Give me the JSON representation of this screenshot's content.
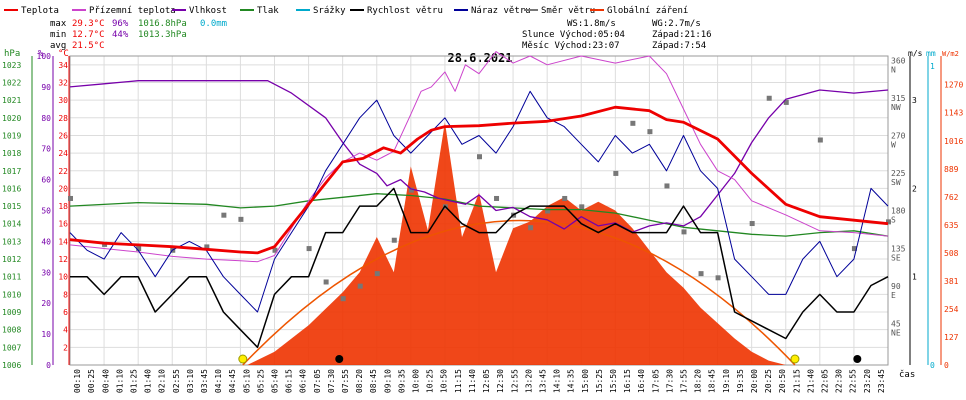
{
  "chart_data": {
    "type": "line",
    "title": "28.6.2021",
    "xlabel": "čas",
    "legend": [
      {
        "name": "Teplota",
        "color": "#ee0000"
      },
      {
        "name": "Přízemní teplota",
        "color": "#cc44cc"
      },
      {
        "name": "Vlhkost",
        "color": "#7700aa"
      },
      {
        "name": "Tlak",
        "color": "#228822"
      },
      {
        "name": "Srážky",
        "color": "#00aacc"
      },
      {
        "name": "Rychlost větru",
        "color": "#000000"
      },
      {
        "name": "Náraz větru",
        "color": "#000099"
      },
      {
        "name": "Směr větru",
        "color": "#777777"
      },
      {
        "name": "Globální záření",
        "color": "#ee3300"
      }
    ],
    "stats": {
      "max_label": "max",
      "max_temp": "29.3°C",
      "max_hum": "96%",
      "max_press": "1016.8hPa",
      "rain": "0.0mm",
      "min_label": "min",
      "min_temp": "12.7°C",
      "min_hum": "44%",
      "min_press": "1013.3hPa",
      "avg_label": "avg",
      "avg_temp": "21.5°C",
      "ws": "WS:1.8m/s",
      "wg": "WG:2.7m/s",
      "sun": "Slunce Východ:05:04",
      "sun_set": "Západ:21:16",
      "moon": "Měsíc Východ:23:07",
      "moon_set": "Západ:7:54"
    },
    "axes": {
      "hpa": {
        "label": "hPa",
        "color": "#228822",
        "ticks": [
          1006,
          1007,
          1008,
          1009,
          1010,
          1011,
          1012,
          1013,
          1014,
          1015,
          1016,
          1017,
          1018,
          1019,
          1020,
          1021,
          1022,
          1023
        ]
      },
      "percent": {
        "label": "%",
        "color": "#7700aa",
        "ticks": [
          0,
          10,
          20,
          30,
          40,
          50,
          60,
          70,
          80,
          90,
          100
        ]
      },
      "celsius": {
        "label": "°C",
        "color": "#ee0000",
        "ticks": [
          2,
          4,
          6,
          8,
          10,
          12,
          14,
          16,
          18,
          20,
          22,
          24,
          26,
          28,
          30,
          32,
          34
        ]
      },
      "ms": {
        "label": "m/s",
        "color": "#000000",
        "ticks": [
          1,
          2,
          3
        ]
      },
      "mm": {
        "label": "mm",
        "color": "#00aacc",
        "ticks": [
          0,
          1
        ]
      },
      "wm2": {
        "label": "W/m2",
        "color": "#ee3300",
        "ticks": [
          0,
          127,
          254,
          381,
          508,
          635,
          762,
          889,
          1016,
          1143,
          1270
        ]
      },
      "direction": {
        "ticks": [
          {
            "deg": "45",
            "dir": "NE"
          },
          {
            "deg": "90",
            "dir": "E"
          },
          {
            "deg": "135",
            "dir": "SE"
          },
          {
            "deg": "180",
            "dir": "S"
          },
          {
            "deg": "225",
            "dir": "SW"
          },
          {
            "deg": "270",
            "dir": "W"
          },
          {
            "deg": "315",
            "dir": "NW"
          },
          {
            "deg": "360",
            "dir": "N"
          }
        ]
      }
    },
    "x_ticks": [
      "00:10",
      "00:25",
      "00:40",
      "01:10",
      "01:25",
      "01:40",
      "02:10",
      "02:55",
      "03:10",
      "03:45",
      "04:10",
      "04:45",
      "05:10",
      "05:25",
      "05:40",
      "06:15",
      "06:40",
      "07:05",
      "07:30",
      "07:55",
      "08:20",
      "08:45",
      "09:10",
      "09:35",
      "10:00",
      "10:25",
      "10:50",
      "11:15",
      "11:40",
      "12:05",
      "12:30",
      "12:55",
      "13:20",
      "13:45",
      "14:10",
      "14:35",
      "15:00",
      "15:25",
      "15:50",
      "16:15",
      "16:40",
      "17:05",
      "17:30",
      "17:55",
      "18:20",
      "18:45",
      "19:10",
      "19:35",
      "20:00",
      "20:25",
      "20:50",
      "21:15",
      "21:40",
      "22:05",
      "22:30",
      "22:55",
      "23:20",
      "23:45"
    ],
    "x_hours": [
      0,
      1,
      2,
      3,
      4,
      5,
      6,
      7,
      8,
      9,
      10,
      11,
      12,
      13,
      14,
      15,
      16,
      17,
      18,
      19,
      20,
      21,
      22,
      23,
      24
    ],
    "series": [
      {
        "name": "Teplota",
        "unit": "°C",
        "x": [
          0,
          1,
          2,
          3,
          4,
          5,
          5.5,
          6,
          7,
          8,
          8.6,
          9.2,
          9.7,
          10.2,
          10.6,
          11,
          12,
          13,
          14,
          15,
          16,
          17,
          17.5,
          18,
          19,
          20,
          21,
          22,
          23,
          24
        ],
        "values": [
          14.2,
          13.8,
          13.6,
          13.4,
          13.1,
          12.8,
          12.7,
          13.4,
          18.2,
          23.0,
          23.4,
          24.6,
          24.0,
          25.6,
          26.6,
          27.0,
          27.1,
          27.4,
          27.6,
          28.2,
          29.2,
          28.8,
          27.8,
          27.5,
          25.6,
          21.7,
          18.2,
          16.8,
          16.4,
          16.0
        ]
      },
      {
        "name": "Přízemní teplota",
        "unit": "°C",
        "x": [
          0,
          1,
          2,
          3,
          4,
          5,
          5.5,
          6,
          7,
          7.5,
          8,
          8.5,
          9,
          9.5,
          10,
          10.3,
          10.6,
          11,
          11.3,
          11.6,
          12,
          12.5,
          13,
          13.5,
          14,
          15,
          16,
          17,
          17.5,
          18,
          18.5,
          19,
          19.5,
          20,
          21,
          22,
          23,
          24
        ],
        "values": [
          13.6,
          13.2,
          12.8,
          12.3,
          12.0,
          11.8,
          11.7,
          12.4,
          18.6,
          21.2,
          23.0,
          24.0,
          23.2,
          24.2,
          28.4,
          31.0,
          31.5,
          33.2,
          31.0,
          34.0,
          33.0,
          35.5,
          34.2,
          35.0,
          34.0,
          35.0,
          34.2,
          35.0,
          33.0,
          29.0,
          25.0,
          22.0,
          21.0,
          18.6,
          17.0,
          15.2,
          15.0,
          14.6
        ]
      },
      {
        "name": "Vlhkost",
        "unit": "%",
        "x": [
          0,
          1,
          2,
          3,
          4,
          5,
          5.8,
          6.5,
          7.5,
          8,
          8.5,
          9,
          9.3,
          9.7,
          10,
          10.4,
          10.8,
          11.2,
          11.6,
          12,
          12.5,
          13,
          13.5,
          14,
          14.5,
          15,
          15.5,
          16,
          16.5,
          17,
          17.5,
          18,
          18.5,
          19,
          19.5,
          20,
          20.5,
          21,
          22,
          23,
          24
        ],
        "values": [
          90,
          91,
          92,
          92,
          92,
          92,
          92,
          88,
          80,
          72,
          65,
          62,
          58,
          60,
          57,
          56,
          54,
          53,
          52,
          55,
          50,
          51,
          48,
          47,
          44,
          48,
          45,
          46,
          43,
          45,
          46,
          45,
          48,
          55,
          62,
          72,
          80,
          86,
          89,
          88,
          89
        ]
      },
      {
        "name": "Tlak",
        "unit": "hPa",
        "x": [
          0,
          2,
          4,
          5,
          6,
          7,
          8,
          9,
          10,
          11,
          12,
          13,
          14,
          15,
          16,
          17,
          18,
          19,
          20,
          21,
          22,
          23,
          24
        ],
        "values": [
          1015.0,
          1015.2,
          1015.1,
          1014.9,
          1015.0,
          1015.3,
          1015.5,
          1015.7,
          1015.6,
          1015.4,
          1015.0,
          1014.9,
          1014.8,
          1014.8,
          1014.6,
          1014.2,
          1013.8,
          1013.6,
          1013.4,
          1013.3,
          1013.5,
          1013.6,
          1013.3
        ]
      },
      {
        "name": "Rychlost větru",
        "unit": "m/s",
        "x": [
          0,
          0.5,
          1,
          1.5,
          2,
          2.5,
          3,
          3.5,
          4,
          4.5,
          5,
          5.5,
          6,
          6.5,
          7,
          7.5,
          8,
          8.5,
          9,
          9.5,
          10,
          10.5,
          11,
          11.5,
          12,
          12.5,
          13,
          13.5,
          14,
          14.5,
          15,
          15.5,
          16,
          16.5,
          17,
          17.5,
          18,
          18.5,
          19,
          19.5,
          20,
          20.5,
          21,
          21.5,
          22,
          22.5,
          23,
          23.5,
          24
        ],
        "values": [
          1.0,
          1.0,
          0.8,
          1.0,
          1.0,
          0.6,
          0.8,
          1.0,
          1.0,
          0.6,
          0.4,
          0.2,
          0.8,
          1.0,
          1.0,
          1.5,
          1.5,
          1.8,
          1.8,
          2.0,
          1.5,
          1.5,
          1.8,
          1.6,
          1.5,
          1.5,
          1.7,
          1.8,
          1.8,
          1.8,
          1.6,
          1.5,
          1.6,
          1.5,
          1.5,
          1.5,
          1.8,
          1.5,
          1.5,
          0.6,
          0.5,
          0.4,
          0.3,
          0.6,
          0.8,
          0.6,
          0.6,
          0.9,
          1.0
        ]
      },
      {
        "name": "Náraz větru",
        "unit": "m/s",
        "x": [
          0,
          0.5,
          1,
          1.5,
          2,
          2.5,
          3,
          3.5,
          4,
          4.5,
          5,
          5.5,
          6,
          6.5,
          7,
          7.5,
          8,
          8.5,
          9,
          9.5,
          10,
          10.5,
          11,
          11.5,
          12,
          12.5,
          13,
          13.5,
          14,
          14.5,
          15,
          15.5,
          16,
          16.5,
          17,
          17.5,
          18,
          18.5,
          19,
          19.5,
          20,
          20.5,
          21,
          21.5,
          22,
          22.5,
          23,
          23.5,
          24
        ],
        "values": [
          1.5,
          1.3,
          1.2,
          1.5,
          1.3,
          1.0,
          1.3,
          1.4,
          1.3,
          1.0,
          0.8,
          0.6,
          1.2,
          1.5,
          1.8,
          2.2,
          2.5,
          2.8,
          3.0,
          2.6,
          2.4,
          2.6,
          2.8,
          2.5,
          2.6,
          2.4,
          2.7,
          3.1,
          2.8,
          2.7,
          2.5,
          2.3,
          2.6,
          2.4,
          2.5,
          2.2,
          2.6,
          2.2,
          2.0,
          1.2,
          1.0,
          0.8,
          0.8,
          1.2,
          1.4,
          1.0,
          1.2,
          2.0,
          1.8
        ]
      },
      {
        "name": "Globální záření",
        "unit": "W/m2",
        "x": [
          0,
          5.2,
          6,
          7,
          8,
          8.5,
          9,
          9.5,
          10,
          10.5,
          11,
          11.5,
          12,
          12.5,
          13,
          13.5,
          14,
          14.5,
          15,
          15.5,
          16,
          16.5,
          17,
          17.5,
          18,
          18.5,
          19,
          19.5,
          20,
          20.5,
          21,
          24
        ],
        "values": [
          0,
          0,
          60,
          180,
          330,
          420,
          580,
          420,
          900,
          610,
          1100,
          580,
          780,
          420,
          620,
          650,
          720,
          760,
          700,
          740,
          700,
          620,
          520,
          420,
          350,
          260,
          190,
          120,
          60,
          20,
          0,
          0
        ]
      },
      {
        "name": "Směr větru",
        "unit": "°",
        "x": [
          0,
          1,
          2,
          3,
          4,
          4.5,
          5,
          6,
          7,
          7.5,
          8,
          8.5,
          9,
          9.5,
          10,
          11,
          12,
          12.5,
          13,
          13.5,
          14,
          14.5,
          15,
          16,
          16.5,
          17,
          17.5,
          18,
          18.5,
          19,
          20,
          20.5,
          21,
          22,
          23,
          24
        ],
        "values": [
          200,
          145,
          140,
          138,
          142,
          180,
          175,
          138,
          140,
          100,
          80,
          95,
          110,
          150,
          210,
          190,
          250,
          200,
          180,
          165,
          185,
          200,
          190,
          230,
          290,
          280,
          215,
          160,
          110,
          105,
          170,
          320,
          315,
          270,
          140,
          172
        ]
      }
    ],
    "sun_markers": [
      5.07,
      21.27
    ],
    "moon_markers": [
      7.9,
      23.1
    ]
  }
}
